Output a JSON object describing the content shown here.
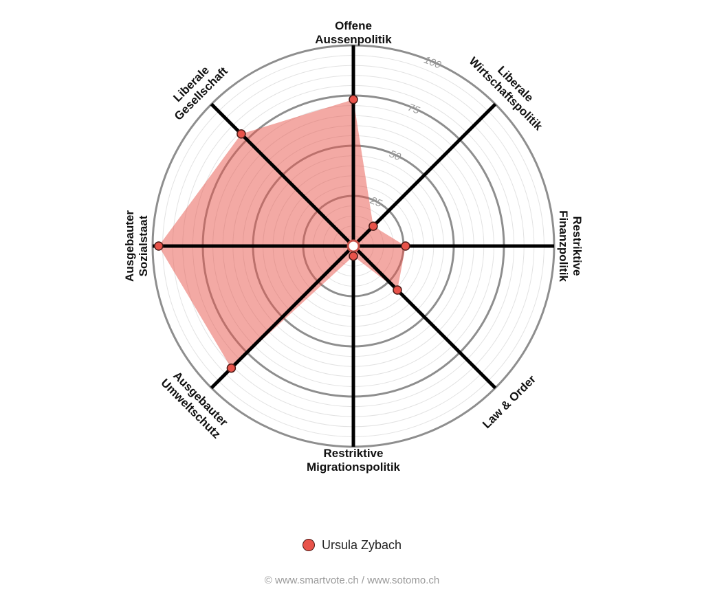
{
  "chart_data": {
    "type": "radar",
    "title": "",
    "axes": [
      {
        "label_lines": [
          "Offene",
          "Aussenpolitik"
        ]
      },
      {
        "label_lines": [
          "Liberale",
          "Wirtschaftspolitik"
        ]
      },
      {
        "label_lines": [
          "Restriktive",
          "Finanzpolitik"
        ]
      },
      {
        "label_lines": [
          "Law & Order"
        ]
      },
      {
        "label_lines": [
          "Restriktive",
          "Migrationspolitik"
        ]
      },
      {
        "label_lines": [
          "Ausgebauter",
          "Umweltschutz"
        ]
      },
      {
        "label_lines": [
          "Ausgebauter",
          "Sozialstaat"
        ]
      },
      {
        "label_lines": [
          "Liberale",
          "Gesellschaft"
        ]
      }
    ],
    "range": [
      0,
      100
    ],
    "major_ticks": [
      25,
      50,
      75,
      100
    ],
    "minor_step": 5,
    "series": [
      {
        "name": "Ursula Zybach",
        "color": "#e8534a",
        "values": [
          73,
          14,
          26,
          31,
          5,
          86,
          97,
          79
        ]
      }
    ]
  },
  "legend": {
    "label": "Ursula Zybach"
  },
  "footer": {
    "text": "© www.smartvote.ch / www.sotomo.ch"
  }
}
